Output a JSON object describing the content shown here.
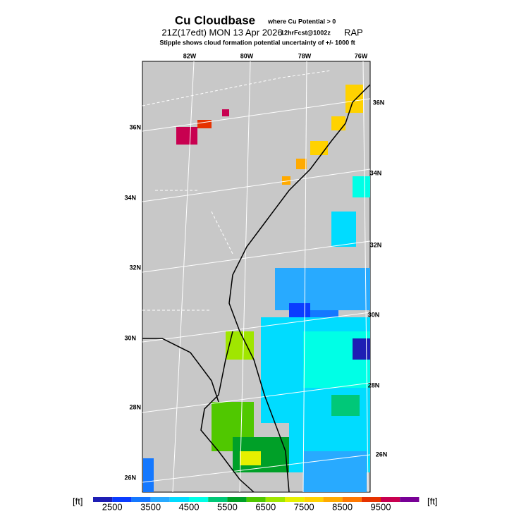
{
  "header": {
    "title": "Cu Cloudbase",
    "title_note": "where Cu Potential > 0",
    "valid": "21Z(17edt) MON 13 Apr 2026",
    "forecast": "12hrFcst@1002z",
    "model": "RAP",
    "subtitle": "Stipple shows cloud formation potential uncertainty of +/-  1000 ft"
  },
  "map": {
    "lon_labels": [
      "82W",
      "80W",
      "78W",
      "76W"
    ],
    "lat_labels_left": [
      "36N",
      "34N",
      "32N",
      "30N",
      "28N",
      "26N"
    ],
    "lat_labels_right": [
      "36N",
      "34N",
      "32N",
      "30N",
      "28N",
      "26N"
    ]
  },
  "colorbar": {
    "unit": "[ft]",
    "labels": [
      "2500",
      "3500",
      "4500",
      "5500",
      "6500",
      "7500",
      "8500",
      "9500"
    ],
    "colors": [
      "#1e1eb4",
      "#0a3cff",
      "#1478ff",
      "#28aaff",
      "#00dcff",
      "#00ffe6",
      "#00c878",
      "#00a028",
      "#50c800",
      "#a0e600",
      "#e6f000",
      "#ffd200",
      "#ffaa00",
      "#ff7800",
      "#e63200",
      "#c80050",
      "#780096"
    ]
  }
}
